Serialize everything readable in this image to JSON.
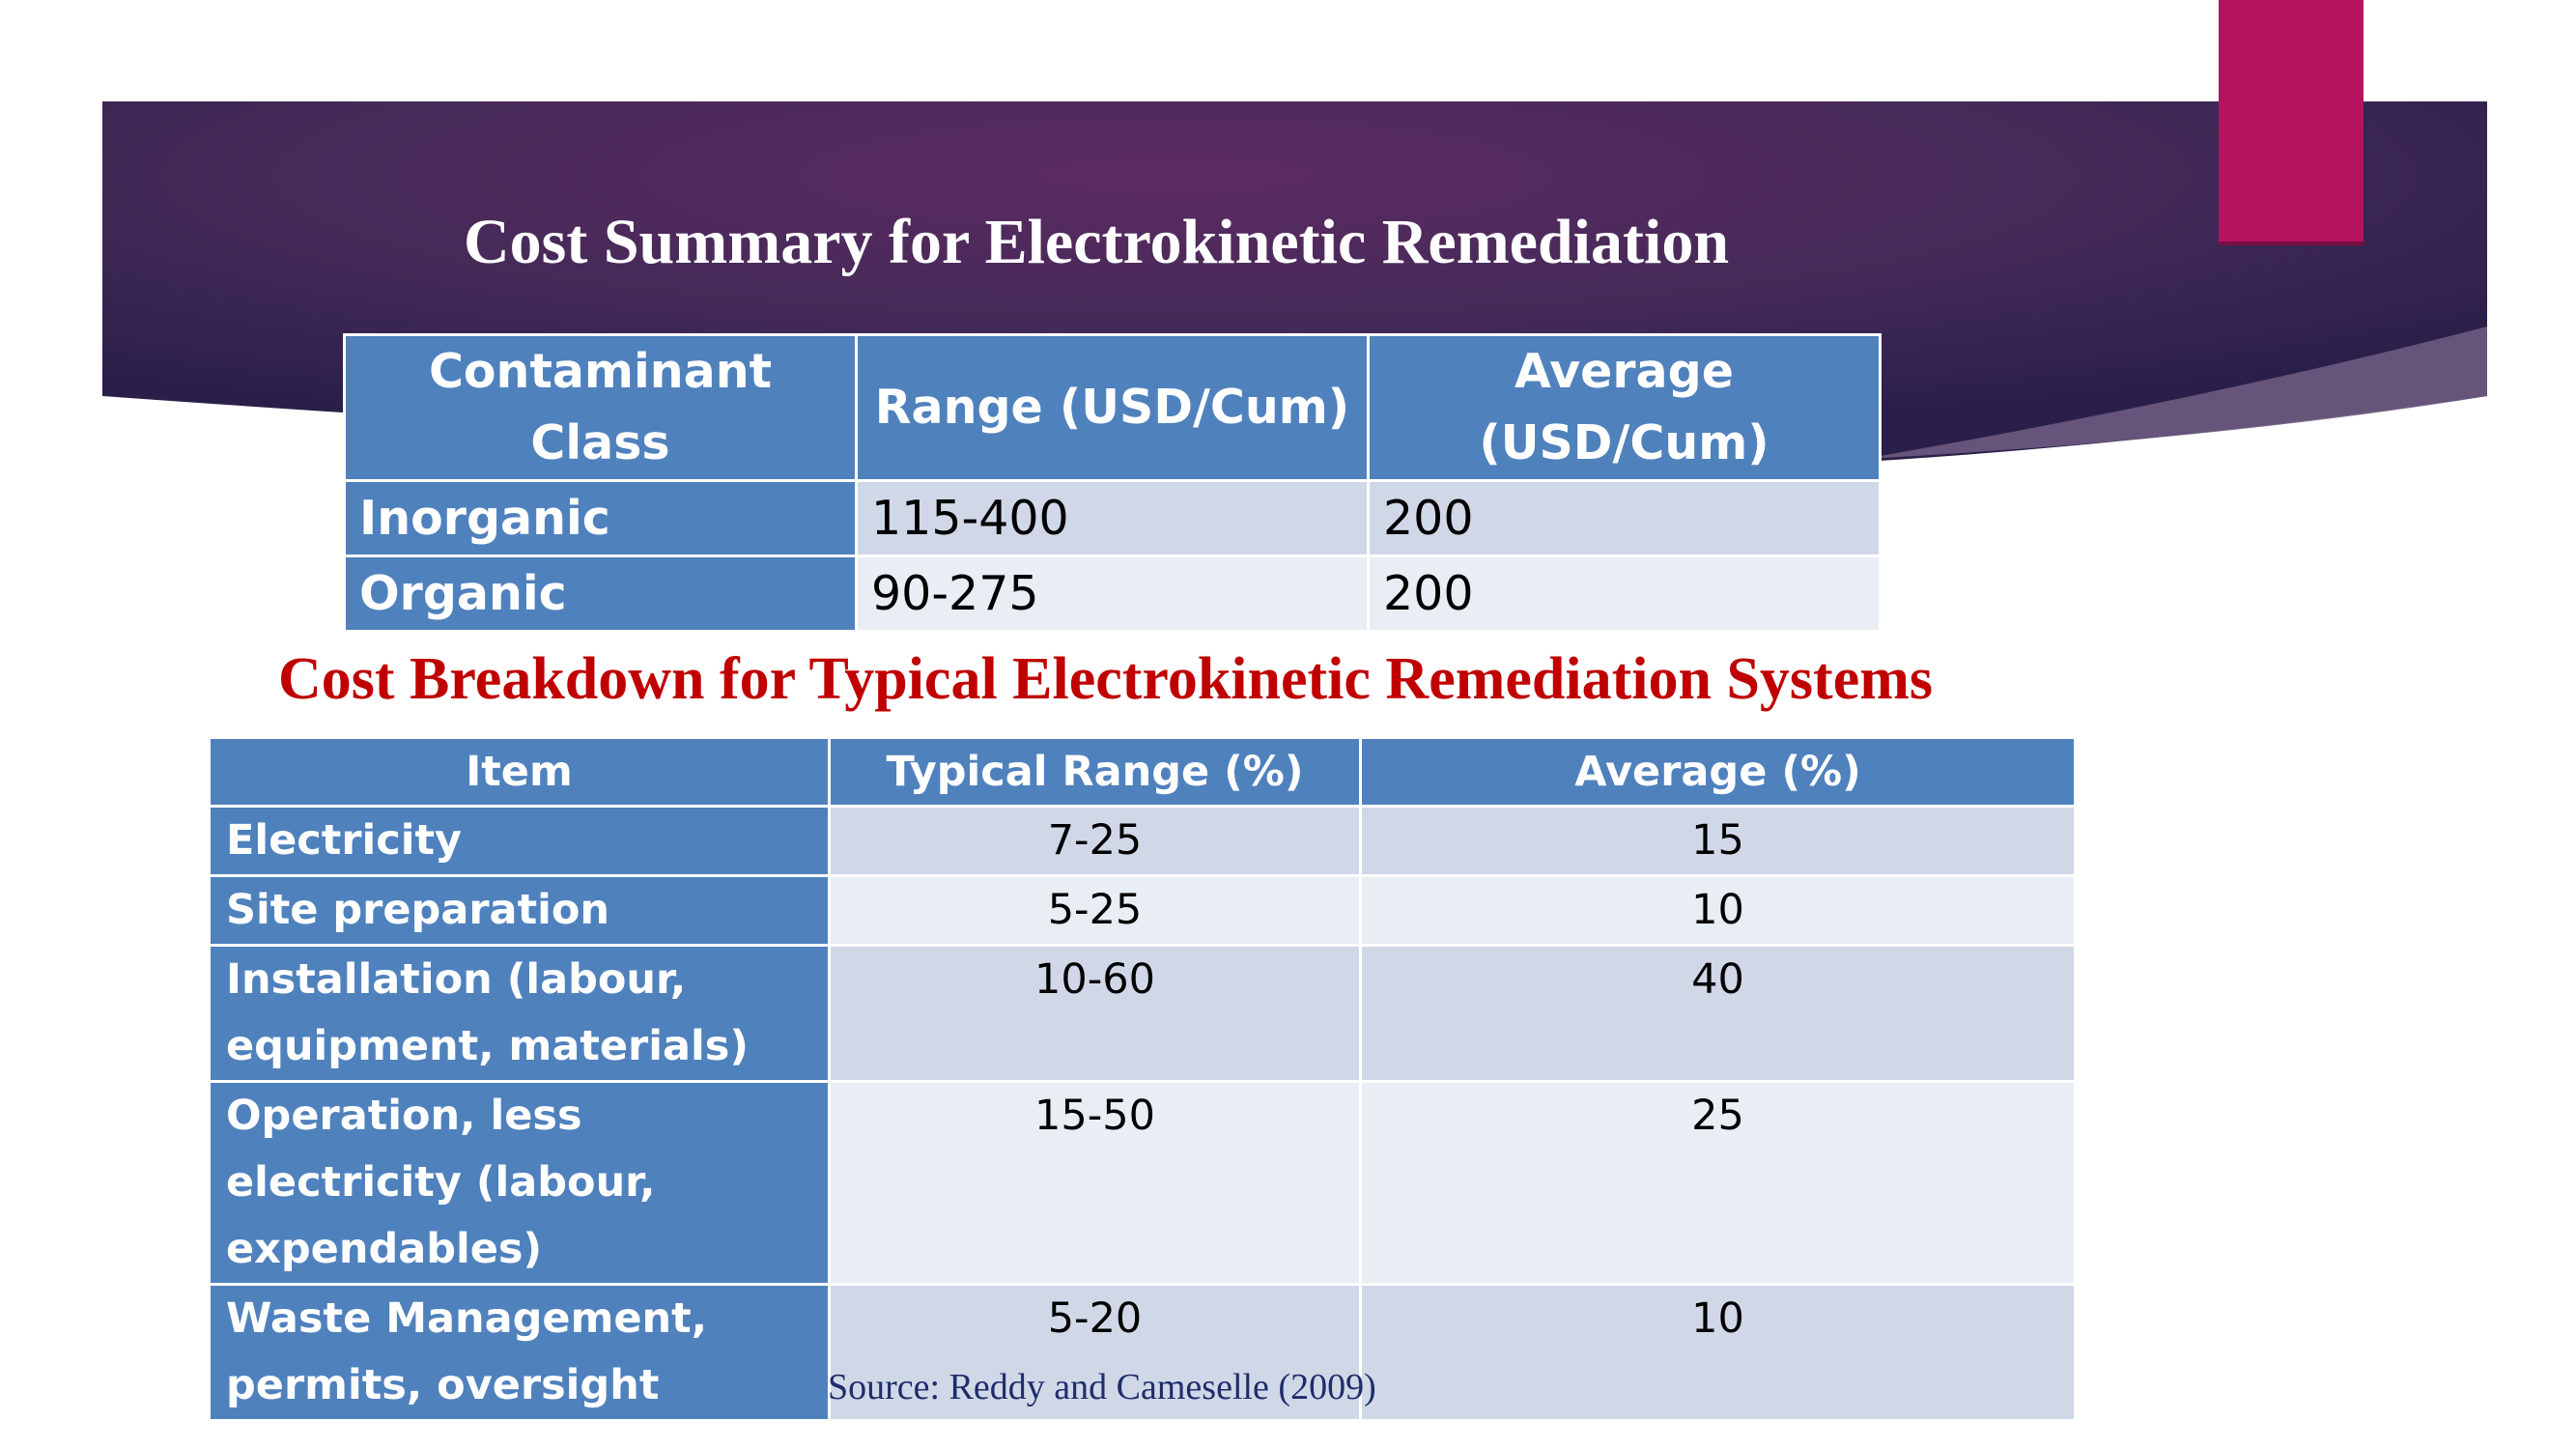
{
  "slide": {
    "title": "Cost Summary for Electrokinetic Remediation",
    "subtitle": "Cost Breakdown for Typical Electrokinetic Remediation Systems",
    "source": "Source: Reddy and Cameselle (2009)"
  },
  "colors": {
    "banner_dark": "#2a1f4a",
    "banner_mid": "#5c2b62",
    "accent_magenta": "#b5135f",
    "header_blue": "#4f81bd",
    "row_light": "#d0d8e8",
    "row_lighter": "#e9edf4",
    "subtitle_red": "#c00000"
  },
  "summary_table": {
    "headers": [
      "Contaminant Class",
      "Range (USD/Cum)",
      "Average (USD/Cum)"
    ],
    "rows": [
      {
        "class": "Inorganic",
        "range": "115-400",
        "average": "200"
      },
      {
        "class": "Organic",
        "range": "90-275",
        "average": "200"
      }
    ]
  },
  "breakdown_table": {
    "headers": [
      "Item",
      "Typical Range (%)",
      "Average (%)"
    ],
    "rows": [
      {
        "item": "Electricity",
        "range": "7-25",
        "average": "15"
      },
      {
        "item": "Site preparation",
        "range": "5-25",
        "average": "10"
      },
      {
        "item": "Installation (labour, equipment, materials)",
        "range": "10-60",
        "average": "40"
      },
      {
        "item": "Operation, less electricity (labour, expendables)",
        "range": "15-50",
        "average": "25"
      },
      {
        "item": "Waste Management, permits, oversight",
        "range": "5-20",
        "average": "10"
      }
    ]
  }
}
